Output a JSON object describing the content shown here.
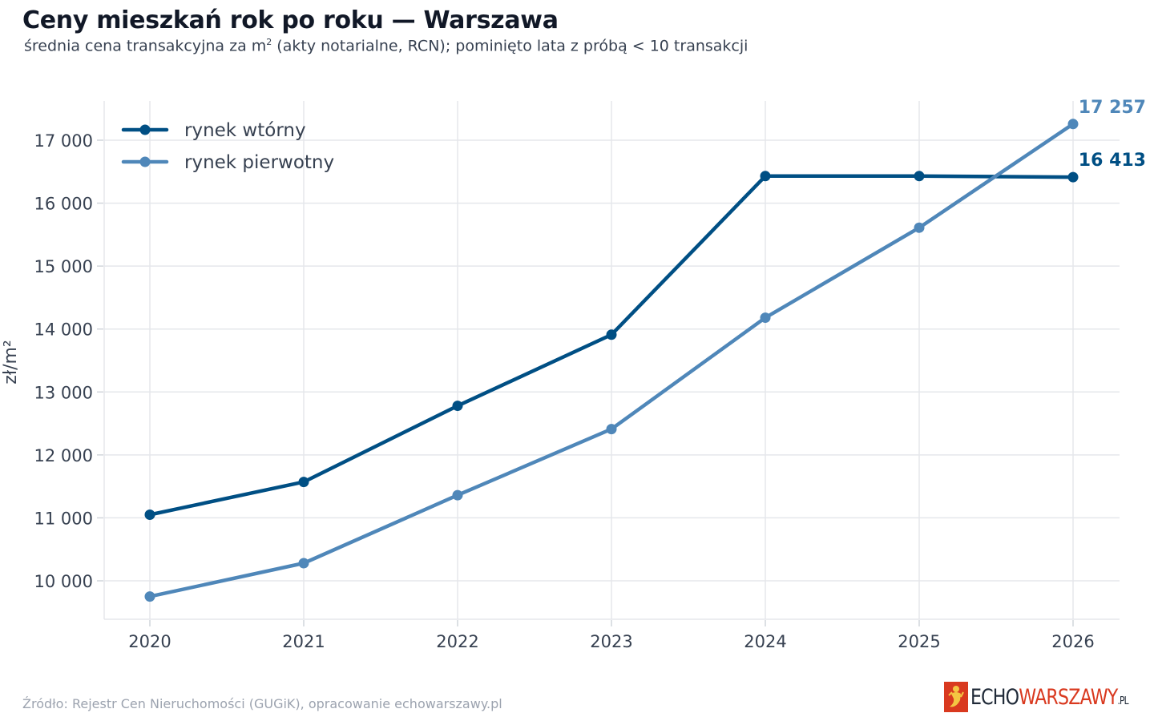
{
  "title": "Ceny mieszkań rok po roku — Warszawa",
  "subtitle_pre": "średnia cena transakcyjna za m",
  "subtitle_sup": "2",
  "subtitle_post": " (akty notarialne, RCN); pominięto lata z próbą < 10 transakcji",
  "source": "Źródło: Rejestr Cen Nieruchomości (GUGiK), opracowanie echowarszawy.pl",
  "logo": {
    "part1": "ECHO",
    "part2": "WARSZAWY",
    "part3": ".PL"
  },
  "chart_data": {
    "type": "line",
    "x": [
      2020,
      2021,
      2022,
      2023,
      2024,
      2025,
      2026
    ],
    "ylabel": "zł/m²",
    "xlabel": "",
    "ylim": [
      9400,
      17600
    ],
    "yticks": [
      10000,
      11000,
      12000,
      13000,
      14000,
      15000,
      16000,
      17000
    ],
    "ytick_labels": [
      "10 000",
      "11 000",
      "12 000",
      "13 000",
      "14 000",
      "15 000",
      "16 000",
      "17 000"
    ],
    "grid": true,
    "legend_position": "top-left",
    "series": [
      {
        "name": "rynek wtórny",
        "color": "#004f84",
        "values": [
          11050,
          11570,
          12780,
          13910,
          16430,
          16430,
          16413
        ],
        "end_label": "16 413"
      },
      {
        "name": "rynek pierwotny",
        "color": "#4f87b9",
        "values": [
          9750,
          10280,
          11360,
          12410,
          14180,
          15610,
          17257
        ],
        "end_label": "17 257"
      }
    ]
  }
}
